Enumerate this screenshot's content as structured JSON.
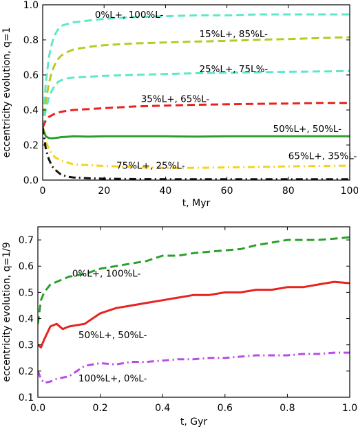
{
  "chart_data": [
    {
      "type": "line",
      "xlabel": "t, Myr",
      "ylabel": "eccentricity evolution, q=1",
      "xlim": [
        0,
        100
      ],
      "ylim": [
        0,
        1
      ],
      "xticks": [
        0,
        20,
        40,
        60,
        80,
        100
      ],
      "yticks": [
        0.0,
        0.2,
        0.4,
        0.6,
        0.8,
        1.0
      ],
      "ytick_labels": [
        "0.0",
        "0.2",
        "0.4",
        "0.6",
        "0.8",
        "1.0"
      ],
      "xtick_labels": [
        "0",
        "20",
        "40",
        "60",
        "80",
        "100"
      ],
      "series": [
        {
          "label": "0%L+, 100%L-",
          "color": "#5ee8c8",
          "style": "dashed",
          "width": 3,
          "x": [
            0,
            1,
            2,
            3,
            4,
            5,
            6,
            8,
            10,
            15,
            20,
            30,
            40,
            50,
            60,
            70,
            80,
            90,
            100
          ],
          "y": [
            0.3,
            0.55,
            0.7,
            0.78,
            0.83,
            0.86,
            0.88,
            0.89,
            0.9,
            0.91,
            0.92,
            0.93,
            0.935,
            0.94,
            0.94,
            0.945,
            0.945,
            0.945,
            0.945
          ]
        },
        {
          "label": "15%L+, 85%L-",
          "color": "#b5cc1e",
          "style": "dashed",
          "width": 3,
          "x": [
            0,
            1,
            2,
            3,
            4,
            5,
            6,
            8,
            10,
            15,
            20,
            30,
            40,
            50,
            60,
            70,
            80,
            90,
            100
          ],
          "y": [
            0.3,
            0.45,
            0.55,
            0.62,
            0.66,
            0.69,
            0.71,
            0.73,
            0.745,
            0.76,
            0.77,
            0.78,
            0.785,
            0.79,
            0.795,
            0.8,
            0.805,
            0.81,
            0.815
          ]
        },
        {
          "label": "25%L+, 75L%-",
          "color": "#5ee8c8",
          "style": "dashed",
          "width": 3,
          "x": [
            0,
            1,
            2,
            3,
            4,
            5,
            6,
            8,
            10,
            15,
            20,
            30,
            40,
            50,
            60,
            70,
            80,
            90,
            100
          ],
          "y": [
            0.3,
            0.4,
            0.47,
            0.51,
            0.54,
            0.56,
            0.57,
            0.58,
            0.585,
            0.59,
            0.595,
            0.6,
            0.605,
            0.61,
            0.612,
            0.615,
            0.618,
            0.62,
            0.622
          ]
        },
        {
          "label": "35%L+, 65%L-",
          "color": "#e8221e",
          "style": "dashed",
          "width": 3,
          "x": [
            0,
            1,
            2,
            3,
            4,
            5,
            6,
            8,
            10,
            15,
            20,
            30,
            40,
            50,
            60,
            70,
            80,
            90,
            100
          ],
          "y": [
            0.3,
            0.34,
            0.36,
            0.37,
            0.38,
            0.385,
            0.39,
            0.395,
            0.4,
            0.405,
            0.41,
            0.42,
            0.425,
            0.43,
            0.432,
            0.435,
            0.437,
            0.44,
            0.44
          ]
        },
        {
          "label": "50%L+, 50%L-",
          "color": "#2aa02a",
          "style": "solid",
          "width": 3,
          "x": [
            0,
            1,
            2,
            3,
            4,
            5,
            6,
            8,
            10,
            15,
            20,
            30,
            40,
            50,
            60,
            70,
            80,
            90,
            100
          ],
          "y": [
            0.3,
            0.25,
            0.24,
            0.238,
            0.24,
            0.242,
            0.245,
            0.247,
            0.25,
            0.248,
            0.25,
            0.25,
            0.25,
            0.248,
            0.25,
            0.25,
            0.25,
            0.25,
            0.25
          ]
        },
        {
          "label": "65%L+, 35%L-",
          "color": "#f5d21e",
          "style": "dashdot",
          "width": 3,
          "x": [
            0,
            1,
            2,
            3,
            4,
            5,
            6,
            8,
            10,
            15,
            20,
            30,
            40,
            50,
            60,
            70,
            80,
            90,
            100
          ],
          "y": [
            0.3,
            0.22,
            0.18,
            0.15,
            0.13,
            0.12,
            0.11,
            0.1,
            0.09,
            0.085,
            0.08,
            0.075,
            0.07,
            0.07,
            0.072,
            0.075,
            0.078,
            0.08,
            0.082
          ]
        },
        {
          "label": "75%L+, 25%L-",
          "color": "#111111",
          "style": "dashdot",
          "width": 3,
          "x": [
            0,
            1,
            2,
            3,
            4,
            5,
            6,
            8,
            10,
            15,
            20,
            30,
            40,
            50,
            60,
            70,
            80,
            90,
            100
          ],
          "y": [
            0.3,
            0.18,
            0.12,
            0.08,
            0.06,
            0.045,
            0.03,
            0.02,
            0.015,
            0.01,
            0.008,
            0.006,
            0.005,
            0.005,
            0.005,
            0.005,
            0.005,
            0.005,
            0.005
          ]
        }
      ],
      "annotations": [
        {
          "text": "0%L+, 100%L-",
          "x": 17,
          "y": 0.925
        },
        {
          "text": "15%L+, 85%L-",
          "x": 51,
          "y": 0.815
        },
        {
          "text": "25%L+, 75L%-",
          "x": 51,
          "y": 0.615
        },
        {
          "text": "35%L+, 65%L-",
          "x": 32,
          "y": 0.445
        },
        {
          "text": "50%L+, 50%L-",
          "x": 75,
          "y": 0.275
        },
        {
          "text": "65%L+, 35%L-",
          "x": 80,
          "y": 0.12
        },
        {
          "text": "75%L+, 25%L-",
          "x": 24,
          "y": 0.065
        }
      ]
    },
    {
      "type": "line",
      "xlabel": "t, Gyr",
      "ylabel": "eccentricity evolution, q=1/9",
      "xlim": [
        0,
        1
      ],
      "ylim": [
        0.1,
        0.75
      ],
      "xticks": [
        0.0,
        0.2,
        0.4,
        0.6,
        0.8,
        1.0
      ],
      "yticks": [
        0.1,
        0.2,
        0.3,
        0.4,
        0.5,
        0.6,
        0.7
      ],
      "ytick_labels": [
        "0.1",
        "0.2",
        "0.3",
        "0.4",
        "0.5",
        "0.6",
        "0.7"
      ],
      "xtick_labels": [
        "0.0",
        "0.2",
        "0.4",
        "0.6",
        "0.8",
        "1.0"
      ],
      "series": [
        {
          "label": "0%L+, 100%L-",
          "color": "#2aa02a",
          "style": "dashed",
          "width": 3,
          "x": [
            0,
            0.01,
            0.02,
            0.04,
            0.06,
            0.08,
            0.1,
            0.15,
            0.2,
            0.25,
            0.3,
            0.35,
            0.4,
            0.45,
            0.5,
            0.55,
            0.6,
            0.65,
            0.7,
            0.75,
            0.8,
            0.85,
            0.9,
            0.95,
            1.0
          ],
          "y": [
            0.38,
            0.47,
            0.5,
            0.53,
            0.54,
            0.55,
            0.56,
            0.57,
            0.59,
            0.6,
            0.61,
            0.62,
            0.64,
            0.64,
            0.65,
            0.655,
            0.66,
            0.665,
            0.68,
            0.69,
            0.7,
            0.7,
            0.7,
            0.705,
            0.71
          ]
        },
        {
          "label": "50%L+, 50%L-",
          "color": "#e8221e",
          "style": "solid",
          "width": 3,
          "x": [
            0,
            0.01,
            0.02,
            0.04,
            0.06,
            0.08,
            0.1,
            0.15,
            0.2,
            0.25,
            0.3,
            0.35,
            0.4,
            0.45,
            0.5,
            0.55,
            0.6,
            0.65,
            0.7,
            0.75,
            0.8,
            0.85,
            0.9,
            0.95,
            1.0
          ],
          "y": [
            0.3,
            0.29,
            0.32,
            0.37,
            0.38,
            0.36,
            0.37,
            0.38,
            0.42,
            0.44,
            0.45,
            0.46,
            0.47,
            0.48,
            0.49,
            0.49,
            0.5,
            0.5,
            0.51,
            0.51,
            0.52,
            0.52,
            0.53,
            0.54,
            0.535
          ]
        },
        {
          "label": "100%L+, 0%L-",
          "color": "#b84be8",
          "style": "dashdot",
          "width": 3,
          "x": [
            0,
            0.01,
            0.02,
            0.04,
            0.06,
            0.08,
            0.1,
            0.15,
            0.2,
            0.25,
            0.3,
            0.35,
            0.4,
            0.45,
            0.5,
            0.55,
            0.6,
            0.65,
            0.7,
            0.75,
            0.8,
            0.85,
            0.9,
            0.95,
            1.0
          ],
          "y": [
            0.2,
            0.17,
            0.155,
            0.16,
            0.17,
            0.175,
            0.18,
            0.22,
            0.23,
            0.225,
            0.235,
            0.235,
            0.24,
            0.245,
            0.245,
            0.25,
            0.25,
            0.255,
            0.26,
            0.26,
            0.26,
            0.265,
            0.265,
            0.27,
            0.27
          ]
        }
      ],
      "annotations": [
        {
          "text": "0%L+, 100%L-",
          "x": 0.11,
          "y": 0.56
        },
        {
          "text": "50%L+, 50%L-",
          "x": 0.13,
          "y": 0.325
        },
        {
          "text": "100%L+, 0%L-",
          "x": 0.13,
          "y": 0.16
        }
      ]
    }
  ]
}
